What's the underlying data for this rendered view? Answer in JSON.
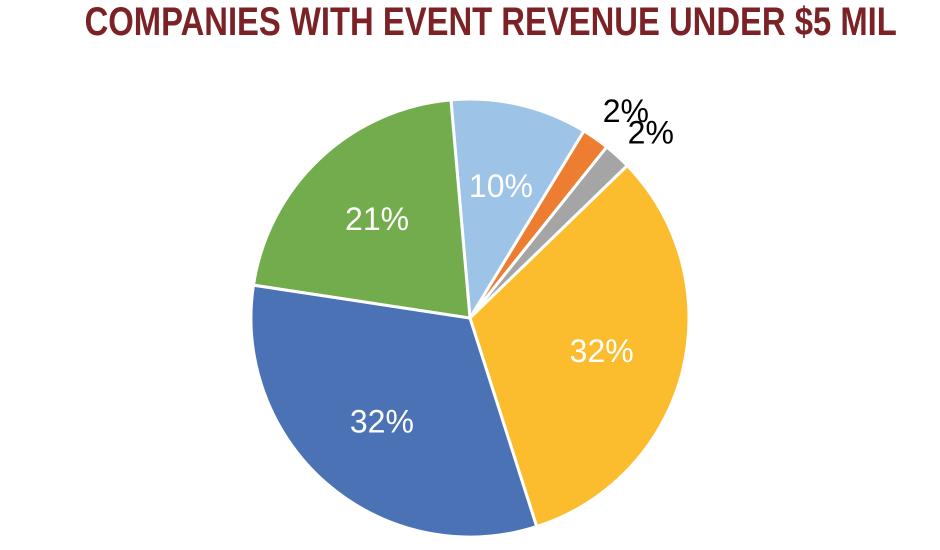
{
  "chart_data": {
    "type": "pie",
    "title": "COMPANIES WITH EVENT REVENUE UNDER $5 MIL",
    "title_color": "#7B2226",
    "slices": [
      {
        "value": 10,
        "label": "10%",
        "color": "#9DC3E6",
        "label_color": "#ffffff",
        "label_placement": "inside"
      },
      {
        "value": 2,
        "label": "2%",
        "color": "#ED7D31",
        "label_color": "#000000",
        "label_placement": "outside"
      },
      {
        "value": 2,
        "label": "2%",
        "color": "#A5A5A5",
        "label_color": "#000000",
        "label_placement": "outside"
      },
      {
        "value": 32,
        "label": "32%",
        "color": "#FBBC2E",
        "label_color": "#ffffff",
        "label_placement": "inside"
      },
      {
        "value": 32,
        "label": "32%",
        "color": "#4A72B5",
        "label_color": "#ffffff",
        "label_placement": "inside"
      },
      {
        "value": 21,
        "label": "21%",
        "color": "#72AC4D",
        "label_color": "#ffffff",
        "label_placement": "inside"
      }
    ],
    "start_angle_deg": -5,
    "direction": "clockwise",
    "legend": "none"
  }
}
